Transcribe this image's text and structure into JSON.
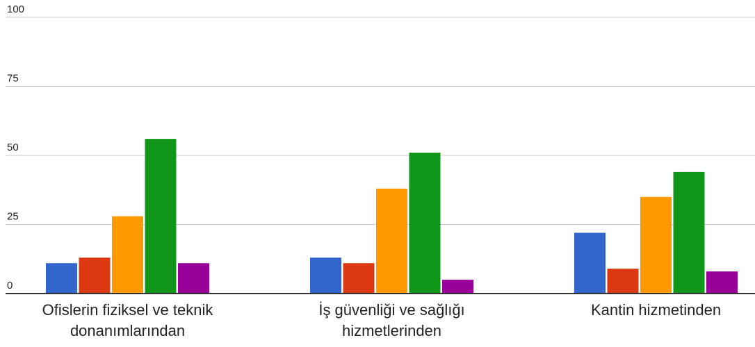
{
  "chart_data": {
    "type": "bar",
    "categories": [
      [
        "Ofislerin fiziksel ve teknik",
        "donanımlarından"
      ],
      [
        "İş güvenliği ve sağlığı",
        "hizmetlerinden"
      ],
      [
        "Kantin hizmetinden"
      ]
    ],
    "series": [
      {
        "color": "#3366cc",
        "values": [
          11,
          13,
          22
        ]
      },
      {
        "color": "#dc3912",
        "values": [
          13,
          11,
          9
        ]
      },
      {
        "color": "#ff9900",
        "values": [
          28,
          38,
          35
        ]
      },
      {
        "color": "#109618",
        "values": [
          56,
          51,
          44
        ]
      },
      {
        "color": "#990099",
        "values": [
          11,
          5,
          8
        ]
      }
    ],
    "yticks": [
      "0",
      "25",
      "50",
      "75",
      "100"
    ],
    "ylim": [
      0,
      100
    ],
    "grid": true,
    "legend": "none"
  }
}
